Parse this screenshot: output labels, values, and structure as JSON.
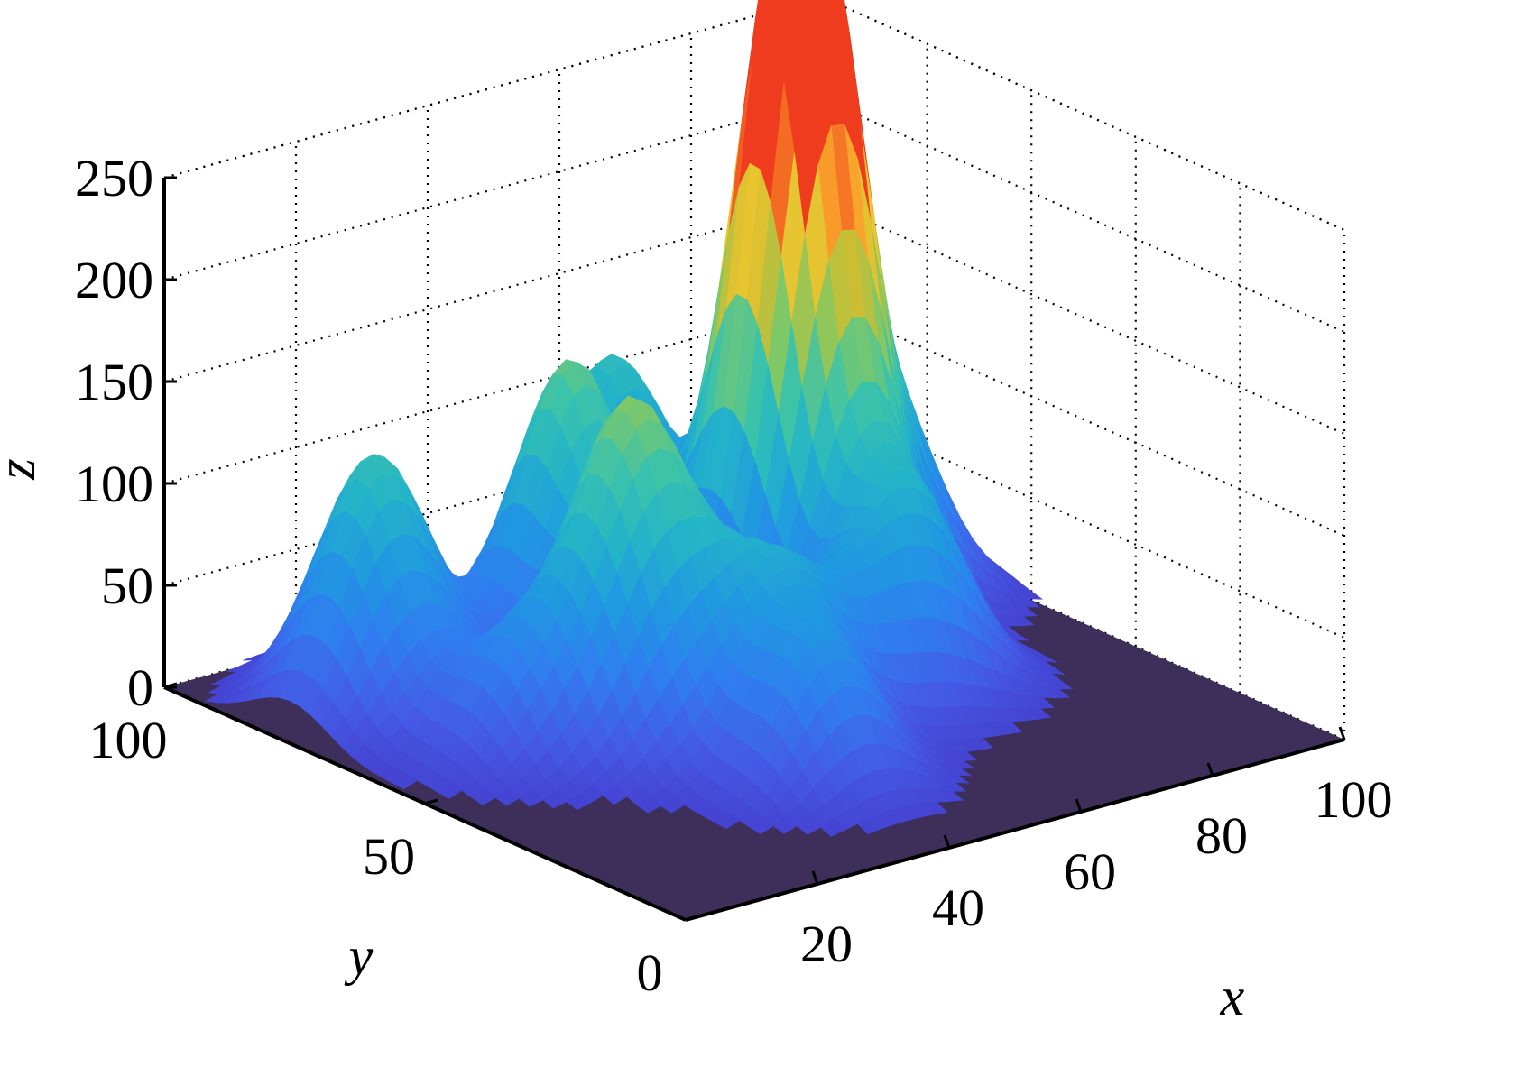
{
  "chart_data": {
    "type": "surface3d",
    "title": "",
    "xlabel": "x",
    "ylabel": "y",
    "zlabel": "z",
    "xlim": [
      0,
      100
    ],
    "ylim": [
      0,
      100
    ],
    "zlim": [
      0,
      250
    ],
    "x_ticks": [
      "20",
      "40",
      "60",
      "80",
      "100"
    ],
    "y_ticks": [
      "0",
      "50",
      "100"
    ],
    "z_ticks": [
      "0",
      "50",
      "100",
      "150",
      "200",
      "250"
    ],
    "grid": true,
    "colormap": "parula",
    "peaks": [
      {
        "x": 70,
        "y": 68,
        "z": 248
      },
      {
        "x": 68,
        "y": 62,
        "z": 180
      },
      {
        "x": 42,
        "y": 75,
        "z": 150
      },
      {
        "x": 35,
        "y": 55,
        "z": 135
      },
      {
        "x": 60,
        "y": 90,
        "z": 120
      },
      {
        "x": 85,
        "y": 70,
        "z": 95
      },
      {
        "x": 70,
        "y": 45,
        "z": 80
      },
      {
        "x": 45,
        "y": 40,
        "z": 75
      },
      {
        "x": 40,
        "y": 25,
        "z": 70
      },
      {
        "x": 30,
        "y": 45,
        "z": 60
      },
      {
        "x": 18,
        "y": 55,
        "z": 55
      },
      {
        "x": 60,
        "y": 40,
        "z": 55
      },
      {
        "x": 12,
        "y": 75,
        "z": 75
      },
      {
        "x": 18,
        "y": 82,
        "z": 78
      }
    ]
  }
}
